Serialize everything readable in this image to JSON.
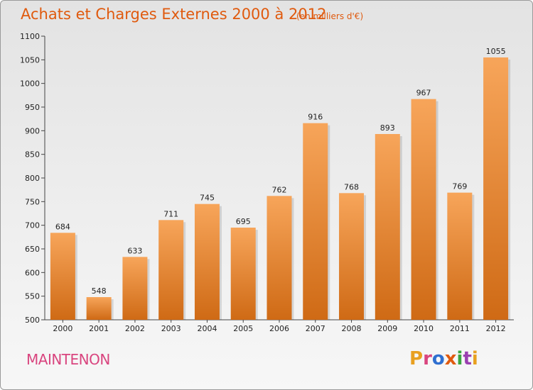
{
  "header": {
    "title": "Achats et Charges Externes 2000 à 2012",
    "subtitle": "(en milliers d'€)"
  },
  "footer": {
    "commune": "MAINTENON",
    "logo_text": "Proxiti",
    "logo_colors": [
      "#e8a020",
      "#d9457f",
      "#2f6fd0",
      "#e05a0e",
      "#3aa640",
      "#9a40b0",
      "#e8a020"
    ]
  },
  "chart_data": {
    "type": "bar",
    "categories": [
      "2000",
      "2001",
      "2002",
      "2003",
      "2004",
      "2005",
      "2006",
      "2007",
      "2008",
      "2009",
      "2010",
      "2011",
      "2012"
    ],
    "values": [
      684,
      548,
      633,
      711,
      745,
      695,
      762,
      916,
      768,
      893,
      967,
      769,
      1055
    ],
    "title": "Achats et Charges Externes 2000 à 2012",
    "xlabel": "",
    "ylabel": "",
    "ylim": [
      500,
      1100
    ],
    "yticks": [
      500,
      550,
      600,
      650,
      700,
      750,
      800,
      850,
      900,
      950,
      1000,
      1050,
      1100
    ],
    "grid": false,
    "bar_color_top": "#f7a55a",
    "bar_color_bottom": "#cf6a15"
  }
}
